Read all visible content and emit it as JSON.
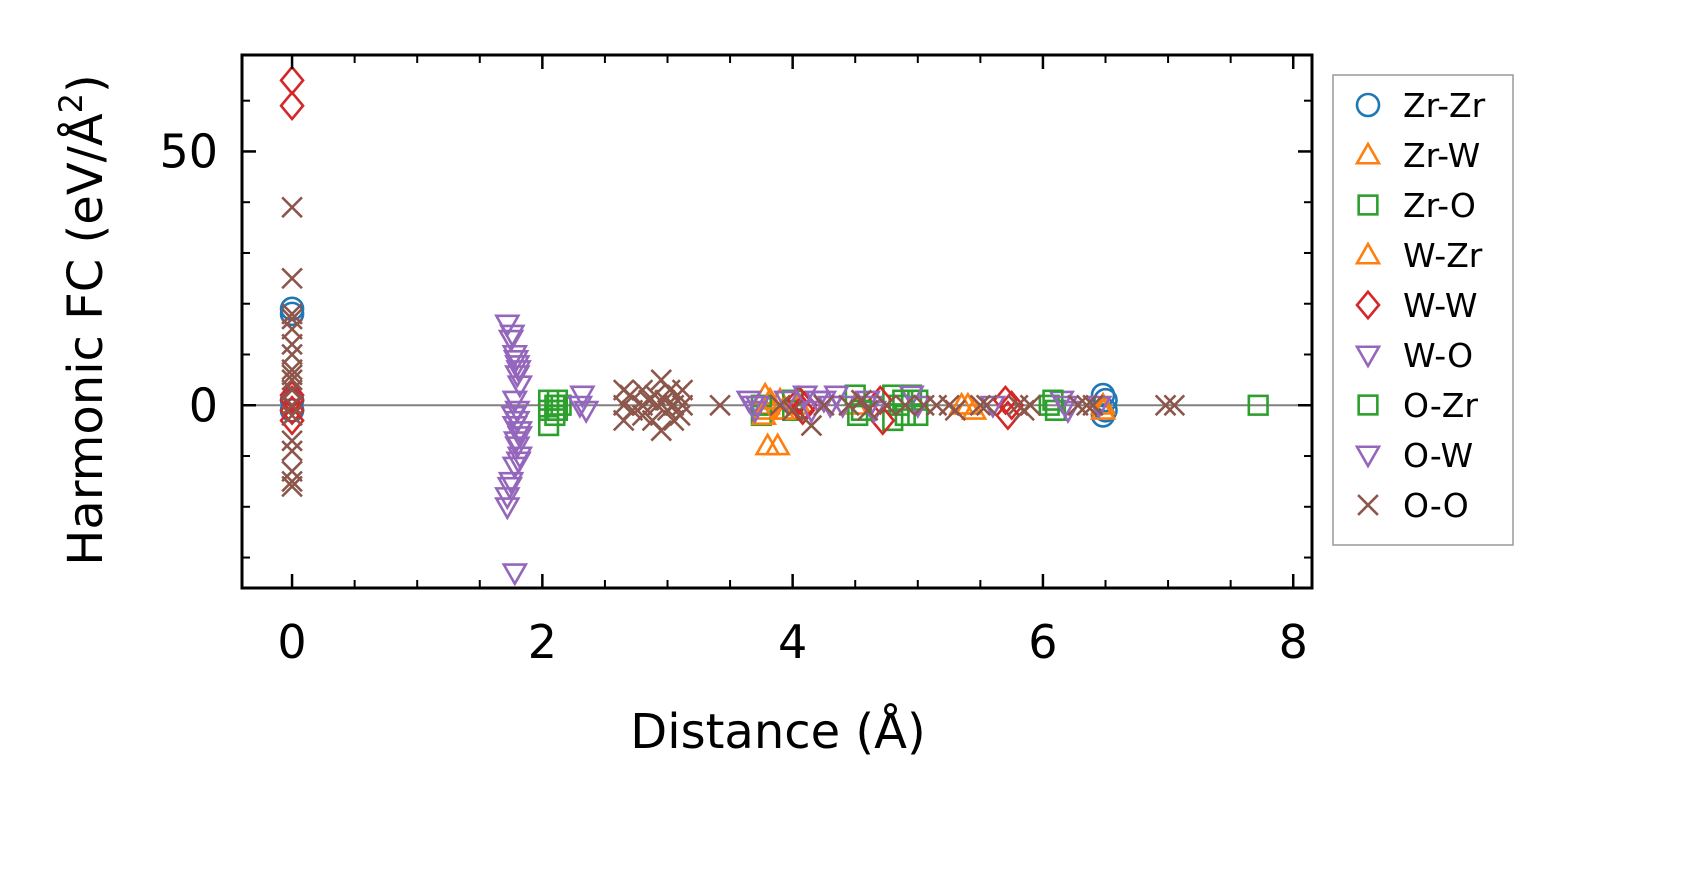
{
  "chart_data": {
    "type": "scatter",
    "xlabel": "Distance (Å)",
    "ylabel_main": "Harmonic FC (eV/Å",
    "ylabel_sup": "2",
    "ylabel_close": ")",
    "xlim": [
      -0.4,
      8.15
    ],
    "ylim": [
      -36,
      69
    ],
    "xticks": [
      0,
      2,
      4,
      6,
      8
    ],
    "xtick_labels": [
      "0",
      "2",
      "4",
      "6",
      "8"
    ],
    "xminor": [
      -0.5,
      0.5,
      1,
      1.5,
      2.5,
      3,
      3.5,
      4.5,
      5,
      5.5,
      6.5,
      7,
      7.5
    ],
    "yticks": [
      0,
      50
    ],
    "ytick_labels": [
      "0",
      "50"
    ],
    "yminor": [
      -30,
      -20,
      -10,
      10,
      20,
      30,
      40,
      60
    ],
    "zero_line": true,
    "grid": false,
    "legend_position": "outside-right",
    "series": [
      {
        "name": "Zr-Zr",
        "marker": "circle",
        "color": "#1f77b4",
        "points": [
          [
            0,
            19
          ],
          [
            0,
            18
          ],
          [
            0,
            1
          ],
          [
            0,
            -1
          ],
          [
            6.48,
            2
          ],
          [
            6.48,
            -2
          ],
          [
            6.5,
            1
          ],
          [
            6.5,
            -1
          ]
        ]
      },
      {
        "name": "Zr-W",
        "marker": "triangle-up",
        "color": "#ff7f0e",
        "points": [
          [
            3.78,
            2
          ],
          [
            3.78,
            -1
          ],
          [
            3.8,
            0
          ],
          [
            3.8,
            -8
          ],
          [
            3.88,
            -8
          ],
          [
            3.9,
            1
          ],
          [
            3.95,
            -1
          ],
          [
            4.05,
            0
          ],
          [
            4.5,
            0
          ],
          [
            5.4,
            0
          ],
          [
            5.45,
            -1
          ],
          [
            6.48,
            0
          ],
          [
            6.48,
            -1
          ]
        ]
      },
      {
        "name": "Zr-O",
        "marker": "square",
        "color": "#2ca02c",
        "points": [
          [
            2.05,
            1
          ],
          [
            2.05,
            -1
          ],
          [
            2.05,
            -4
          ],
          [
            2.1,
            0
          ],
          [
            2.12,
            -1
          ],
          [
            2.12,
            1
          ],
          [
            2.15,
            0
          ],
          [
            3.75,
            0
          ],
          [
            3.75,
            -2
          ],
          [
            4.0,
            1
          ],
          [
            4.0,
            -1
          ],
          [
            4.5,
            2
          ],
          [
            4.52,
            -2
          ],
          [
            4.8,
            2
          ],
          [
            4.8,
            -3
          ],
          [
            4.85,
            0
          ],
          [
            4.9,
            -2
          ],
          [
            4.95,
            2
          ],
          [
            5.0,
            -2
          ],
          [
            5.0,
            1
          ],
          [
            6.05,
            0
          ],
          [
            6.1,
            -1
          ],
          [
            7.72,
            0
          ]
        ]
      },
      {
        "name": "W-Zr",
        "marker": "triangle-up",
        "color": "#ff7f0e",
        "points": [
          [
            3.77,
            -2
          ],
          [
            3.82,
            1
          ],
          [
            3.92,
            -1
          ],
          [
            5.35,
            0
          ]
        ]
      },
      {
        "name": "W-W",
        "marker": "diamond",
        "color": "#d62728",
        "points": [
          [
            0,
            64
          ],
          [
            0,
            59
          ],
          [
            0,
            2
          ],
          [
            0,
            1
          ],
          [
            0,
            -1
          ],
          [
            0,
            -3
          ],
          [
            4.05,
            1
          ],
          [
            4.08,
            -1
          ],
          [
            4.1,
            0
          ],
          [
            4.7,
            1
          ],
          [
            4.72,
            -3
          ],
          [
            5.7,
            1
          ],
          [
            5.72,
            -2
          ],
          [
            5.75,
            0
          ]
        ]
      },
      {
        "name": "W-O",
        "marker": "triangle-down",
        "color": "#9467bd",
        "points": [
          [
            1.72,
            16
          ],
          [
            1.75,
            13
          ],
          [
            1.78,
            10
          ],
          [
            1.8,
            8
          ],
          [
            1.8,
            6
          ],
          [
            1.82,
            4
          ],
          [
            1.78,
            1
          ],
          [
            1.8,
            -1
          ],
          [
            1.78,
            -4
          ],
          [
            1.82,
            -6
          ],
          [
            1.8,
            -8
          ],
          [
            1.82,
            -10
          ],
          [
            1.78,
            -12
          ],
          [
            1.75,
            -15
          ],
          [
            1.72,
            -18
          ],
          [
            1.72,
            -20
          ],
          [
            1.78,
            -33
          ],
          [
            1.82,
            -5
          ],
          [
            1.8,
            -3
          ],
          [
            2.32,
            2
          ],
          [
            2.35,
            -1
          ],
          [
            3.65,
            1
          ],
          [
            3.7,
            -1
          ],
          [
            3.68,
            0
          ],
          [
            3.95,
            1
          ],
          [
            4.1,
            2
          ],
          [
            4.15,
            -1
          ],
          [
            4.2,
            1
          ],
          [
            4.3,
            0
          ],
          [
            4.35,
            2
          ],
          [
            4.4,
            0
          ],
          [
            4.6,
            1
          ],
          [
            4.65,
            -1
          ],
          [
            4.95,
            2
          ],
          [
            5.0,
            0
          ],
          [
            5.6,
            0
          ],
          [
            6.15,
            1
          ],
          [
            6.2,
            -1
          ],
          [
            6.45,
            0
          ]
        ]
      },
      {
        "name": "O-Zr",
        "marker": "square",
        "color": "#2ca02c",
        "points": [
          [
            2.1,
            -2
          ],
          [
            4.55,
            -1
          ],
          [
            4.88,
            1
          ],
          [
            6.08,
            1
          ]
        ]
      },
      {
        "name": "O-W",
        "marker": "triangle-down",
        "color": "#9467bd",
        "points": [
          [
            1.76,
            14
          ],
          [
            1.79,
            9
          ],
          [
            1.81,
            7
          ],
          [
            1.77,
            -2
          ],
          [
            1.79,
            -7
          ],
          [
            1.81,
            -11
          ],
          [
            1.74,
            -16
          ],
          [
            2.3,
            0
          ],
          [
            3.72,
            0
          ],
          [
            4.25,
            1
          ],
          [
            4.62,
            0
          ],
          [
            6.18,
            0
          ]
        ]
      },
      {
        "name": "O-O",
        "marker": "x",
        "color": "#8c564b",
        "points": [
          [
            0,
            39
          ],
          [
            0,
            25
          ],
          [
            0,
            18
          ],
          [
            0,
            17
          ],
          [
            0,
            15
          ],
          [
            0,
            12
          ],
          [
            0,
            10
          ],
          [
            0,
            7
          ],
          [
            0,
            6
          ],
          [
            0,
            5
          ],
          [
            0,
            3
          ],
          [
            0,
            0
          ],
          [
            0,
            -2
          ],
          [
            0,
            -7
          ],
          [
            0,
            -9
          ],
          [
            0,
            -13
          ],
          [
            0,
            -15
          ],
          [
            0,
            -16
          ],
          [
            2.65,
            3
          ],
          [
            2.65,
            0
          ],
          [
            2.65,
            -3
          ],
          [
            2.7,
            2
          ],
          [
            2.72,
            -1
          ],
          [
            2.8,
            3
          ],
          [
            2.8,
            0
          ],
          [
            2.8,
            -2
          ],
          [
            2.85,
            1
          ],
          [
            2.88,
            -3
          ],
          [
            2.9,
            2
          ],
          [
            2.92,
            0
          ],
          [
            2.95,
            5
          ],
          [
            2.95,
            -5
          ],
          [
            2.98,
            1
          ],
          [
            3.0,
            -1
          ],
          [
            3.02,
            3
          ],
          [
            3.05,
            0
          ],
          [
            3.05,
            -3
          ],
          [
            3.08,
            2
          ],
          [
            3.1,
            -2
          ],
          [
            3.12,
            0
          ],
          [
            3.12,
            3
          ],
          [
            3.42,
            0
          ],
          [
            3.9,
            0
          ],
          [
            4.0,
            -1
          ],
          [
            4.15,
            -4
          ],
          [
            4.25,
            0
          ],
          [
            4.45,
            0
          ],
          [
            4.55,
            1
          ],
          [
            4.6,
            -1
          ],
          [
            4.75,
            0
          ],
          [
            4.9,
            0
          ],
          [
            5.05,
            0
          ],
          [
            5.15,
            0
          ],
          [
            5.25,
            0
          ],
          [
            5.3,
            -1
          ],
          [
            5.5,
            0
          ],
          [
            5.55,
            0
          ],
          [
            5.8,
            0
          ],
          [
            5.85,
            -1
          ],
          [
            5.9,
            0
          ],
          [
            6.28,
            0
          ],
          [
            6.35,
            0
          ],
          [
            6.4,
            0
          ],
          [
            6.98,
            0
          ],
          [
            7.05,
            0
          ]
        ]
      }
    ]
  }
}
